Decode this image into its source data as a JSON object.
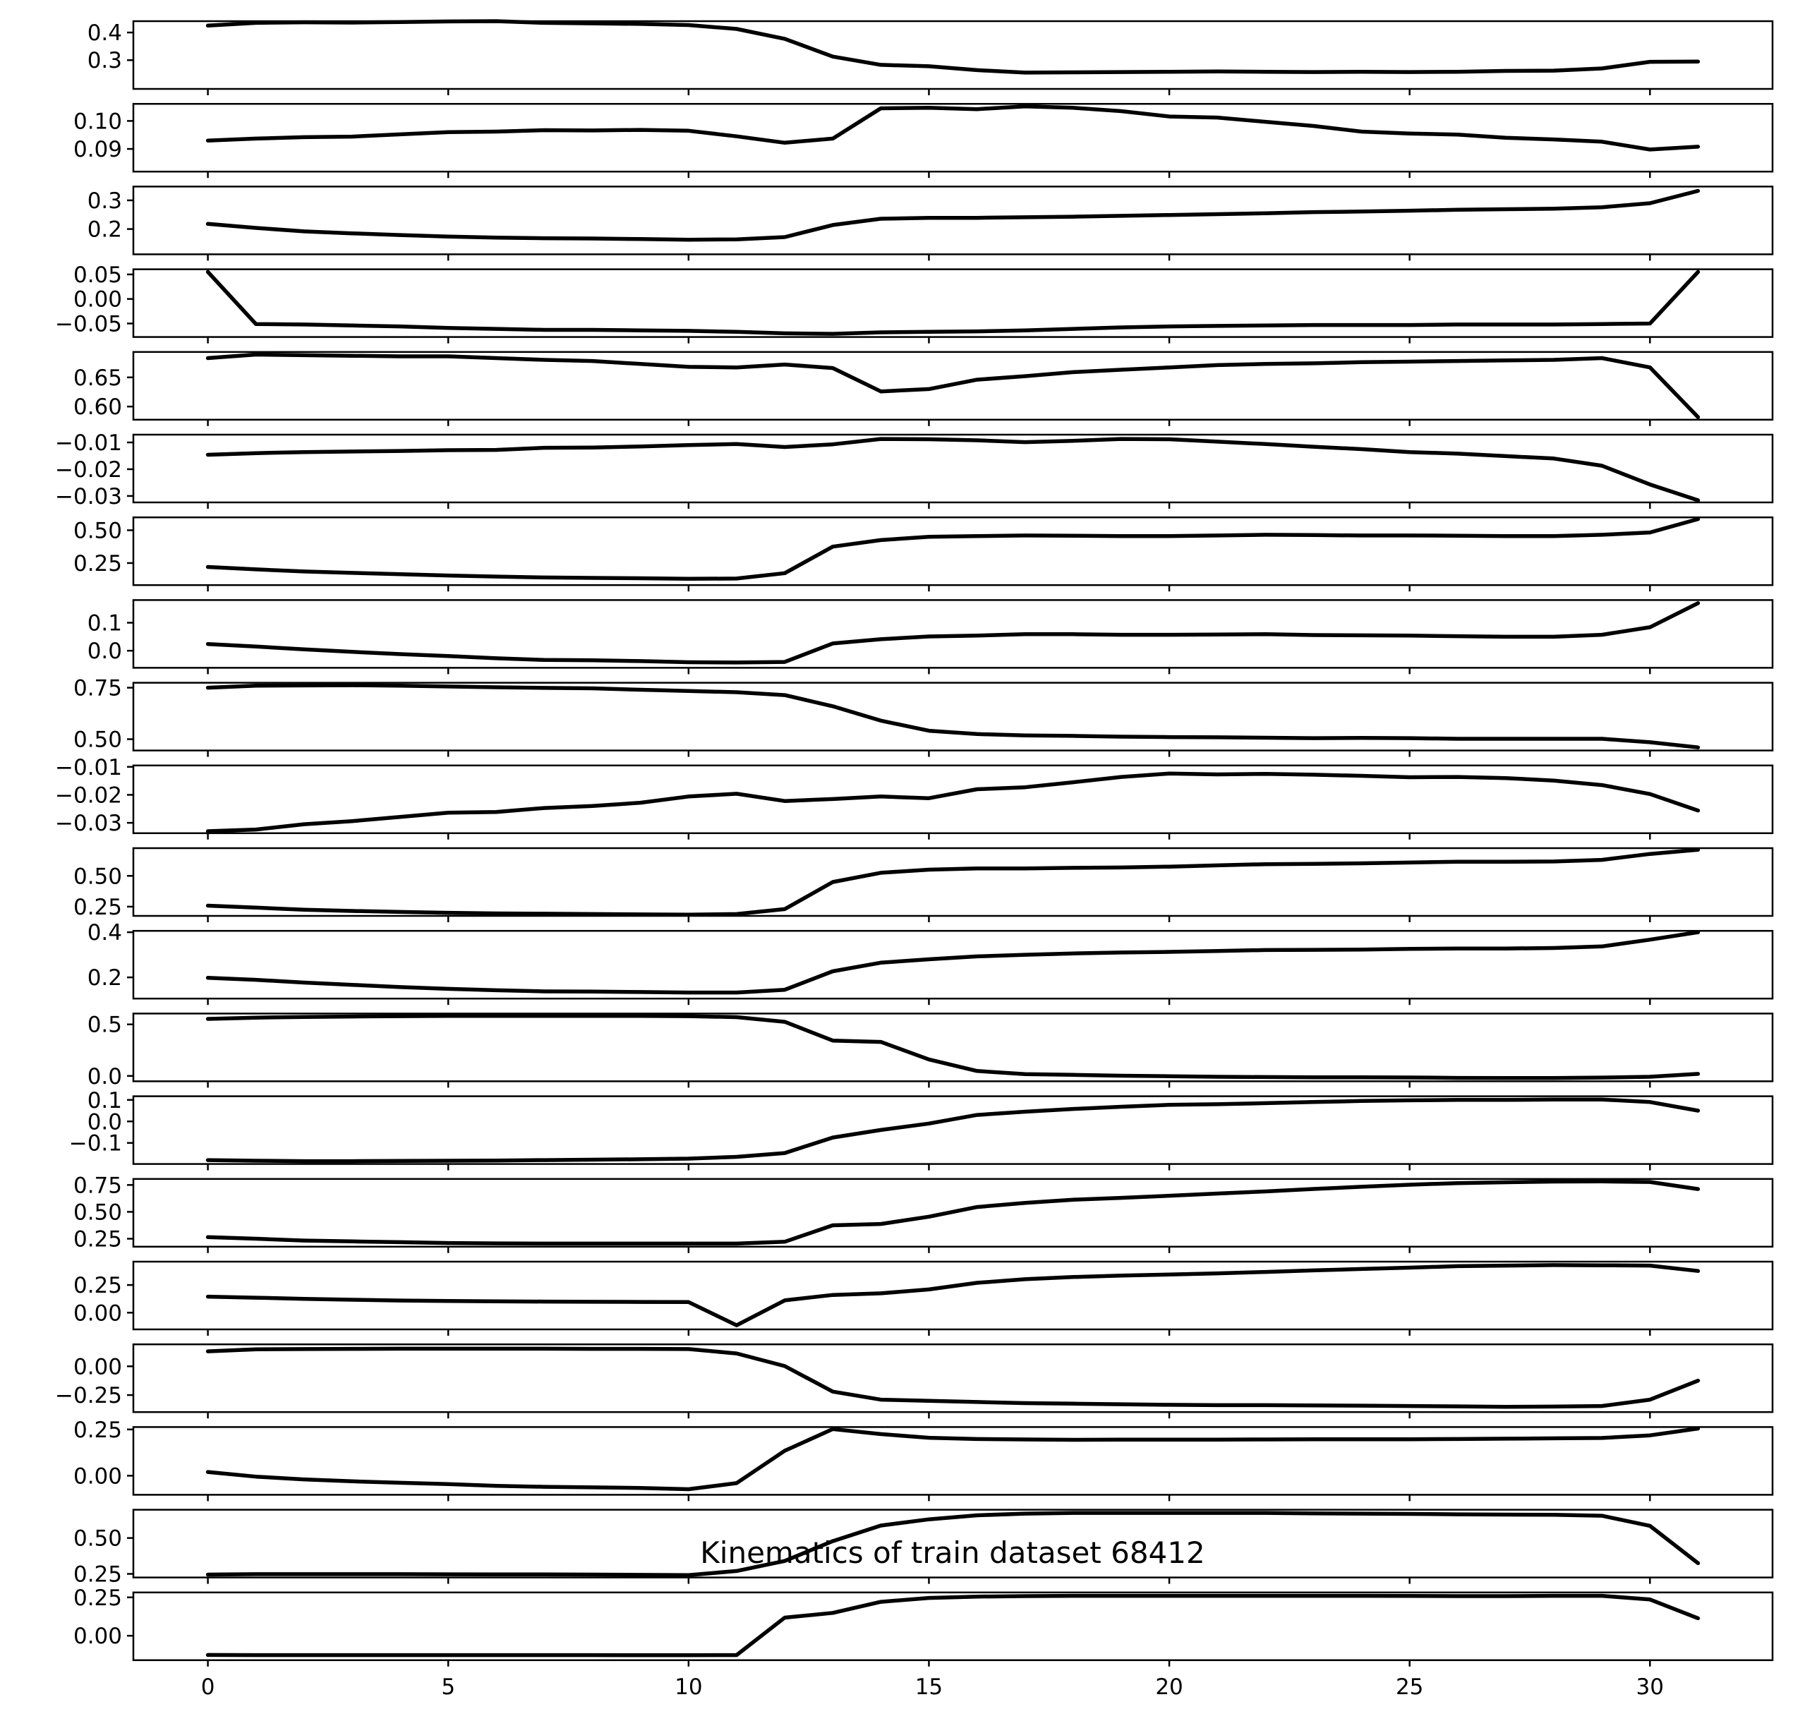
{
  "figure": {
    "title": "Kinematics of train dataset 68412",
    "line_color": "#000000",
    "background": "#ffffff"
  },
  "chart_data": {
    "type": "line",
    "title": "Kinematics of train dataset 68412",
    "xlim": [
      -1.55,
      32.55
    ],
    "x": [
      0,
      1,
      2,
      3,
      4,
      5,
      6,
      7,
      8,
      9,
      10,
      11,
      12,
      13,
      14,
      15,
      16,
      17,
      18,
      19,
      20,
      21,
      22,
      23,
      24,
      25,
      26,
      27,
      28,
      29,
      30,
      31
    ],
    "x_ticks": [
      0,
      5,
      10,
      15,
      20,
      25,
      30
    ],
    "x_tick_labels": [
      "0",
      "5",
      "10",
      "15",
      "20",
      "25",
      "30"
    ],
    "grid": false,
    "legend": false,
    "panels": [
      {
        "ylim": [
          0.196,
          0.441
        ],
        "yticks": [
          0.3,
          0.4
        ],
        "ytick_labels": [
          "0.3",
          "0.4"
        ],
        "values": [
          0.425,
          0.435,
          0.437,
          0.436,
          0.438,
          0.44,
          0.441,
          0.435,
          0.433,
          0.431,
          0.427,
          0.413,
          0.377,
          0.313,
          0.283,
          0.278,
          0.264,
          0.255,
          0.256,
          0.257,
          0.258,
          0.259,
          0.258,
          0.257,
          0.258,
          0.257,
          0.258,
          0.261,
          0.262,
          0.27,
          0.294,
          0.295
        ]
      },
      {
        "ylim": [
          0.0819,
          0.1061
        ],
        "yticks": [
          0.09,
          0.1
        ],
        "ytick_labels": [
          "0.09",
          "0.10"
        ],
        "values": [
          0.093,
          0.0937,
          0.0942,
          0.0944,
          0.0952,
          0.096,
          0.0962,
          0.0967,
          0.0966,
          0.0968,
          0.0965,
          0.0945,
          0.0922,
          0.0937,
          0.1045,
          0.1047,
          0.1042,
          0.1052,
          0.1047,
          0.1035,
          0.1016,
          0.1012,
          0.0997,
          0.0982,
          0.0962,
          0.0955,
          0.0951,
          0.094,
          0.0934,
          0.0926,
          0.0898,
          0.0908
        ]
      },
      {
        "ylim": [
          0.112,
          0.348
        ],
        "yticks": [
          0.2,
          0.3
        ],
        "ytick_labels": [
          "0.2",
          "0.3"
        ],
        "values": [
          0.218,
          0.204,
          0.192,
          0.185,
          0.179,
          0.174,
          0.17,
          0.168,
          0.167,
          0.165,
          0.163,
          0.164,
          0.172,
          0.214,
          0.236,
          0.239,
          0.239,
          0.241,
          0.243,
          0.246,
          0.249,
          0.252,
          0.255,
          0.259,
          0.261,
          0.264,
          0.267,
          0.269,
          0.271,
          0.276,
          0.29,
          0.333
        ]
      },
      {
        "ylim": [
          -0.0775,
          0.0605
        ],
        "yticks": [
          -0.05,
          0.0,
          0.05
        ],
        "ytick_labels": [
          "−0.05",
          "0.00",
          "0.05"
        ],
        "values": [
          0.055,
          -0.051,
          -0.052,
          -0.054,
          -0.056,
          -0.059,
          -0.061,
          -0.063,
          -0.063,
          -0.064,
          -0.065,
          -0.067,
          -0.07,
          -0.071,
          -0.068,
          -0.067,
          -0.066,
          -0.064,
          -0.061,
          -0.058,
          -0.056,
          -0.055,
          -0.054,
          -0.053,
          -0.053,
          -0.053,
          -0.052,
          -0.052,
          -0.052,
          -0.051,
          -0.05,
          0.055
        ]
      },
      {
        "ylim": [
          0.5775,
          0.6935
        ],
        "yticks": [
          0.6,
          0.65
        ],
        "ytick_labels": [
          "0.60",
          "0.65"
        ],
        "values": [
          0.683,
          0.689,
          0.688,
          0.687,
          0.686,
          0.686,
          0.683,
          0.68,
          0.678,
          0.673,
          0.668,
          0.667,
          0.672,
          0.666,
          0.626,
          0.63,
          0.646,
          0.652,
          0.659,
          0.663,
          0.667,
          0.671,
          0.673,
          0.674,
          0.676,
          0.677,
          0.678,
          0.679,
          0.68,
          0.683,
          0.667,
          0.582
        ]
      },
      {
        "ylim": [
          -0.0324,
          -0.0071
        ],
        "yticks": [
          -0.03,
          -0.02,
          -0.01
        ],
        "ytick_labels": [
          "−0.03",
          "−0.02",
          "−0.01"
        ],
        "values": [
          -0.0146,
          -0.014,
          -0.0136,
          -0.0134,
          -0.0132,
          -0.0129,
          -0.0128,
          -0.012,
          -0.0119,
          -0.0115,
          -0.011,
          -0.0106,
          -0.0117,
          -0.0107,
          -0.0087,
          -0.0088,
          -0.0092,
          -0.0099,
          -0.0094,
          -0.0087,
          -0.0088,
          -0.0097,
          -0.0106,
          -0.0116,
          -0.0125,
          -0.0136,
          -0.0142,
          -0.0151,
          -0.016,
          -0.0187,
          -0.0257,
          -0.0316
        ]
      },
      {
        "ylim": [
          0.082,
          0.598
        ],
        "yticks": [
          0.25,
          0.5
        ],
        "ytick_labels": [
          "0.25",
          "0.50"
        ],
        "values": [
          0.22,
          0.202,
          0.186,
          0.175,
          0.165,
          0.155,
          0.147,
          0.14,
          0.137,
          0.134,
          0.13,
          0.132,
          0.173,
          0.375,
          0.425,
          0.45,
          0.455,
          0.46,
          0.458,
          0.455,
          0.455,
          0.46,
          0.465,
          0.463,
          0.46,
          0.46,
          0.458,
          0.455,
          0.455,
          0.465,
          0.483,
          0.585
        ]
      },
      {
        "ylim": [
          -0.061,
          0.181
        ],
        "yticks": [
          0.0,
          0.1
        ],
        "ytick_labels": [
          "0.0",
          "0.1"
        ],
        "values": [
          0.024,
          0.015,
          0.005,
          -0.004,
          -0.012,
          -0.019,
          -0.027,
          -0.033,
          -0.034,
          -0.037,
          -0.041,
          -0.042,
          -0.04,
          0.026,
          0.041,
          0.051,
          0.054,
          0.059,
          0.059,
          0.057,
          0.057,
          0.058,
          0.059,
          0.056,
          0.055,
          0.054,
          0.052,
          0.05,
          0.05,
          0.057,
          0.084,
          0.17
        ]
      },
      {
        "ylim": [
          0.445,
          0.774
        ],
        "yticks": [
          0.5,
          0.75
        ],
        "ytick_labels": [
          "0.50",
          "0.75"
        ],
        "values": [
          0.75,
          0.76,
          0.761,
          0.762,
          0.76,
          0.756,
          0.752,
          0.749,
          0.747,
          0.74,
          0.734,
          0.728,
          0.714,
          0.66,
          0.59,
          0.541,
          0.525,
          0.518,
          0.516,
          0.512,
          0.51,
          0.509,
          0.507,
          0.505,
          0.506,
          0.505,
          0.502,
          0.502,
          0.502,
          0.502,
          0.485,
          0.46
        ]
      },
      {
        "ylim": [
          -0.0337,
          -0.0095
        ],
        "yticks": [
          -0.03,
          -0.02,
          -0.01
        ],
        "ytick_labels": [
          "−0.03",
          "−0.02",
          "−0.01"
        ],
        "values": [
          -0.033,
          -0.0324,
          -0.0305,
          -0.0294,
          -0.0279,
          -0.0264,
          -0.0261,
          -0.0247,
          -0.024,
          -0.0228,
          -0.0206,
          -0.0196,
          -0.0222,
          -0.0215,
          -0.0206,
          -0.0212,
          -0.018,
          -0.0173,
          -0.0155,
          -0.0136,
          -0.0124,
          -0.0127,
          -0.0125,
          -0.0128,
          -0.0132,
          -0.0137,
          -0.0136,
          -0.014,
          -0.0149,
          -0.0165,
          -0.0197,
          -0.0256
        ]
      },
      {
        "ylim": [
          0.175,
          0.725
        ],
        "yticks": [
          0.25,
          0.5
        ],
        "ytick_labels": [
          "0.25",
          "0.50"
        ],
        "values": [
          0.258,
          0.242,
          0.225,
          0.215,
          0.207,
          0.2,
          0.195,
          0.193,
          0.19,
          0.187,
          0.185,
          0.19,
          0.23,
          0.45,
          0.525,
          0.55,
          0.56,
          0.56,
          0.565,
          0.568,
          0.575,
          0.585,
          0.595,
          0.598,
          0.602,
          0.608,
          0.615,
          0.615,
          0.617,
          0.63,
          0.678,
          0.712
        ]
      },
      {
        "ylim": [
          0.106,
          0.406
        ],
        "yticks": [
          0.2,
          0.4
        ],
        "ytick_labels": [
          "0.2",
          "0.4"
        ],
        "values": [
          0.198,
          0.189,
          0.177,
          0.167,
          0.157,
          0.149,
          0.143,
          0.138,
          0.137,
          0.135,
          0.133,
          0.133,
          0.145,
          0.227,
          0.265,
          0.28,
          0.293,
          0.3,
          0.306,
          0.31,
          0.313,
          0.317,
          0.321,
          0.322,
          0.323,
          0.326,
          0.328,
          0.328,
          0.33,
          0.337,
          0.367,
          0.4
        ]
      },
      {
        "ylim": [
          -0.052,
          0.605
        ],
        "yticks": [
          0.0,
          0.5
        ],
        "ytick_labels": [
          "0.0",
          "0.5"
        ],
        "values": [
          0.553,
          0.565,
          0.572,
          0.576,
          0.58,
          0.582,
          0.582,
          0.582,
          0.582,
          0.582,
          0.58,
          0.57,
          0.525,
          0.343,
          0.33,
          0.16,
          0.048,
          0.018,
          0.01,
          0.002,
          -0.003,
          -0.008,
          -0.011,
          -0.013,
          -0.013,
          -0.015,
          -0.019,
          -0.02,
          -0.02,
          -0.016,
          -0.008,
          0.02
        ]
      },
      {
        "ylim": [
          -0.198,
          0.117
        ],
        "yticks": [
          -0.1,
          0.0,
          0.1
        ],
        "ytick_labels": [
          "−0.1",
          "0.0",
          "0.1"
        ],
        "values": [
          -0.18,
          -0.183,
          -0.185,
          -0.185,
          -0.184,
          -0.183,
          -0.182,
          -0.18,
          -0.178,
          -0.176,
          -0.173,
          -0.165,
          -0.147,
          -0.075,
          -0.04,
          -0.01,
          0.03,
          0.045,
          0.058,
          0.068,
          0.077,
          0.08,
          0.085,
          0.09,
          0.095,
          0.098,
          0.1,
          0.1,
          0.102,
          0.102,
          0.09,
          0.05
        ]
      },
      {
        "ylim": [
          0.176,
          0.806
        ],
        "yticks": [
          0.25,
          0.5,
          0.75
        ],
        "ytick_labels": [
          "0.25",
          "0.50",
          "0.75"
        ],
        "values": [
          0.265,
          0.25,
          0.233,
          0.225,
          0.218,
          0.21,
          0.207,
          0.205,
          0.205,
          0.205,
          0.205,
          0.205,
          0.222,
          0.375,
          0.387,
          0.455,
          0.545,
          0.583,
          0.613,
          0.63,
          0.65,
          0.67,
          0.69,
          0.713,
          0.733,
          0.752,
          0.767,
          0.775,
          0.782,
          0.783,
          0.778,
          0.712
        ]
      },
      {
        "ylim": [
          -0.151,
          0.461
        ],
        "yticks": [
          0.0,
          0.25
        ],
        "ytick_labels": [
          "0.00",
          "0.25"
        ],
        "values": [
          0.145,
          0.135,
          0.125,
          0.117,
          0.11,
          0.106,
          0.102,
          0.1,
          0.098,
          0.097,
          0.096,
          -0.114,
          0.111,
          0.16,
          0.175,
          0.21,
          0.27,
          0.302,
          0.322,
          0.335,
          0.345,
          0.355,
          0.368,
          0.382,
          0.395,
          0.407,
          0.42,
          0.425,
          0.43,
          0.428,
          0.425,
          0.377
        ]
      },
      {
        "ylim": [
          -0.398,
          0.191
        ],
        "yticks": [
          -0.25,
          0.0
        ],
        "ytick_labels": [
          "−0.25",
          "0.00"
        ],
        "values": [
          0.13,
          0.148,
          0.15,
          0.152,
          0.153,
          0.153,
          0.153,
          0.153,
          0.152,
          0.152,
          0.15,
          0.112,
          0.002,
          -0.22,
          -0.29,
          -0.3,
          -0.31,
          -0.32,
          -0.325,
          -0.33,
          -0.335,
          -0.338,
          -0.338,
          -0.34,
          -0.342,
          -0.345,
          -0.348,
          -0.352,
          -0.35,
          -0.345,
          -0.29,
          -0.125
        ]
      },
      {
        "ylim": [
          -0.103,
          0.263
        ],
        "yticks": [
          0.0,
          0.25
        ],
        "ytick_labels": [
          "0.00",
          "0.25"
        ],
        "values": [
          0.02,
          -0.005,
          -0.02,
          -0.03,
          -0.038,
          -0.045,
          -0.055,
          -0.06,
          -0.063,
          -0.066,
          -0.073,
          -0.04,
          0.135,
          0.252,
          0.225,
          0.205,
          0.198,
          0.196,
          0.194,
          0.195,
          0.195,
          0.195,
          0.196,
          0.197,
          0.197,
          0.197,
          0.198,
          0.2,
          0.202,
          0.204,
          0.218,
          0.255
        ]
      },
      {
        "ylim": [
          0.225,
          0.697
        ],
        "yticks": [
          0.25,
          0.5
        ],
        "ytick_labels": [
          "0.25",
          "0.50"
        ],
        "values": [
          0.245,
          0.248,
          0.248,
          0.248,
          0.248,
          0.247,
          0.246,
          0.246,
          0.245,
          0.243,
          0.241,
          0.27,
          0.34,
          0.478,
          0.587,
          0.63,
          0.658,
          0.67,
          0.675,
          0.675,
          0.675,
          0.675,
          0.675,
          0.672,
          0.67,
          0.668,
          0.665,
          0.663,
          0.662,
          0.655,
          0.585,
          0.325
        ]
      },
      {
        "ylim": [
          -0.159,
          0.282
        ],
        "yticks": [
          0.0,
          0.25
        ],
        "ytick_labels": [
          "0.00",
          "0.25"
        ],
        "values": [
          -0.125,
          -0.126,
          -0.126,
          -0.126,
          -0.126,
          -0.126,
          -0.126,
          -0.126,
          -0.126,
          -0.127,
          -0.127,
          -0.126,
          0.118,
          0.149,
          0.221,
          0.246,
          0.255,
          0.258,
          0.26,
          0.26,
          0.26,
          0.26,
          0.26,
          0.26,
          0.26,
          0.259,
          0.258,
          0.258,
          0.26,
          0.26,
          0.236,
          0.114
        ]
      }
    ]
  }
}
